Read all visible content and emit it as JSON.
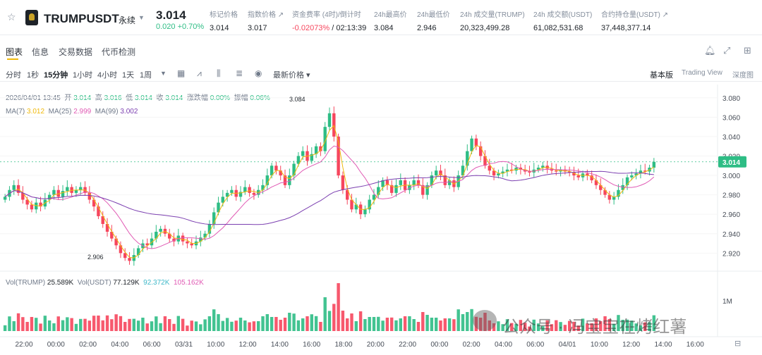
{
  "header": {
    "symbol": "TRUMPUSDT",
    "contract_type": "永续",
    "price": "3.014",
    "change": "0.020 +0.70%",
    "stats": [
      {
        "label": "标记价格",
        "value": "3.014",
        "color": "#1e2329"
      },
      {
        "label": "指数价格 ↗",
        "value": "3.017",
        "color": "#1e2329"
      },
      {
        "label": "资金费率 (4时)/倒计时",
        "value_red": "-0.02073%",
        "value_rest": " / 02:13:39"
      },
      {
        "label": "24h最高价",
        "value": "3.084",
        "color": "#1e2329"
      },
      {
        "label": "24h最低价",
        "value": "2.946",
        "color": "#1e2329"
      },
      {
        "label": "24h 成交量(TRUMP)",
        "value": "20,323,499.28",
        "color": "#1e2329"
      },
      {
        "label": "24h 成交额(USDT)",
        "value": "61,082,531.68",
        "color": "#1e2329"
      },
      {
        "label": "合约持仓量(USDT) ↗",
        "value": "37,448,377.14",
        "color": "#1e2329"
      }
    ]
  },
  "tabs": [
    "图表",
    "信息",
    "交易数据",
    "代币检测"
  ],
  "toolbar": {
    "intervals": [
      "分时",
      "1秒",
      "15分钟",
      "1小时",
      "4小时",
      "1天",
      "1周"
    ],
    "active_interval": "15分钟",
    "price_type": "最新价格 ▾",
    "views": [
      "基本版",
      "Trading View",
      "深度图"
    ]
  },
  "ohlc": {
    "date": "2026/04/01 13:45",
    "open_label": "开",
    "open": "3.014",
    "high_label": "高",
    "high": "3.016",
    "low_label": "低",
    "low": "3.014",
    "close_label": "收",
    "close": "3.014",
    "chg_label": "涨跌幅",
    "chg": "0.00%",
    "amp_label": "振幅",
    "amp": "0.06%"
  },
  "ma": {
    "ma7_label": "MA(7)",
    "ma7": "3.012",
    "ma25_label": "MA(25)",
    "ma25": "2.999",
    "ma99_label": "MA(99)",
    "ma99": "3.002"
  },
  "vol": {
    "label1": "Vol(TRUMP)",
    "v1": "25.589K",
    "label2": "Vol(USDT)",
    "v2": "77.129K",
    "v3": "92.372K",
    "v4": "105.162K"
  },
  "watermark": "公众号 · 冯宝宝在烤红薯",
  "colors": {
    "up": "#2ebd85",
    "down": "#f6465d",
    "ma7": "#f0b90b",
    "ma25": "#e05ab4",
    "ma99": "#7b3fb0",
    "accent": "#f0b90b"
  },
  "chart_data": {
    "type": "candlestick",
    "y_axis_ticks": [
      "3.080",
      "3.060",
      "3.040",
      "3.020",
      "3.000",
      "2.980",
      "2.960",
      "2.940",
      "2.920"
    ],
    "ylim": [
      2.905,
      3.09
    ],
    "x_axis_ticks": [
      "22:00",
      "00:00",
      "02:00",
      "04:00",
      "06:00",
      "03/31",
      "10:00",
      "12:00",
      "14:00",
      "16:00",
      "18:00",
      "20:00",
      "22:00",
      "00:00",
      "02:00",
      "04:00",
      "06:00",
      "04/01",
      "10:00",
      "12:00",
      "14:00",
      "16:00"
    ],
    "current_price_label": "3.014",
    "max_label": "3.084",
    "min_label": "2.906",
    "vol_axis_label": "1M",
    "closes": [
      2.978,
      2.985,
      2.99,
      2.982,
      2.975,
      2.97,
      2.965,
      2.972,
      2.968,
      2.975,
      2.98,
      2.985,
      2.978,
      2.984,
      2.988,
      2.982,
      2.985,
      2.988,
      2.982,
      2.975,
      2.968,
      2.958,
      2.95,
      2.942,
      2.935,
      2.928,
      2.92,
      2.915,
      2.912,
      2.918,
      2.925,
      2.93,
      2.928,
      2.935,
      2.942,
      2.945,
      2.94,
      2.935,
      2.932,
      2.938,
      2.932,
      2.93,
      2.928,
      2.932,
      2.936,
      2.94,
      2.95,
      2.962,
      2.972,
      2.978,
      2.982,
      2.985,
      2.978,
      2.983,
      2.988,
      2.982,
      2.98,
      2.985,
      2.99,
      3.0,
      3.01,
      3.005,
      3.0,
      2.99,
      3.0,
      3.012,
      3.02,
      3.025,
      3.015,
      3.022,
      3.03,
      3.025,
      3.05,
      3.064,
      3.04,
      3.0,
      2.985,
      2.975,
      2.965,
      2.97,
      2.96,
      2.965,
      2.975,
      2.98,
      2.988,
      2.995,
      2.99,
      2.982,
      2.99,
      2.995,
      2.985,
      2.99,
      2.995,
      2.99,
      2.98,
      2.99,
      3.0,
      3.005,
      3.0,
      2.99,
      2.995,
      2.988,
      3.0,
      3.01,
      3.025,
      3.038,
      3.03,
      3.02,
      3.01,
      3.005,
      3.0,
      3.002,
      3.004,
      3.006,
      3.005,
      3.008,
      3.006,
      3.004,
      3.003,
      3.006,
      3.008,
      3.01,
      3.007,
      3.005,
      3.004,
      3.006,
      3.004,
      3.003,
      3.0,
      2.998,
      3.002,
      3.0,
      2.995,
      2.99,
      2.985,
      2.98,
      2.975,
      2.978,
      2.985,
      2.99,
      2.998,
      3.0,
      3.002,
      3.005,
      3.004,
      3.008,
      3.014
    ]
  }
}
